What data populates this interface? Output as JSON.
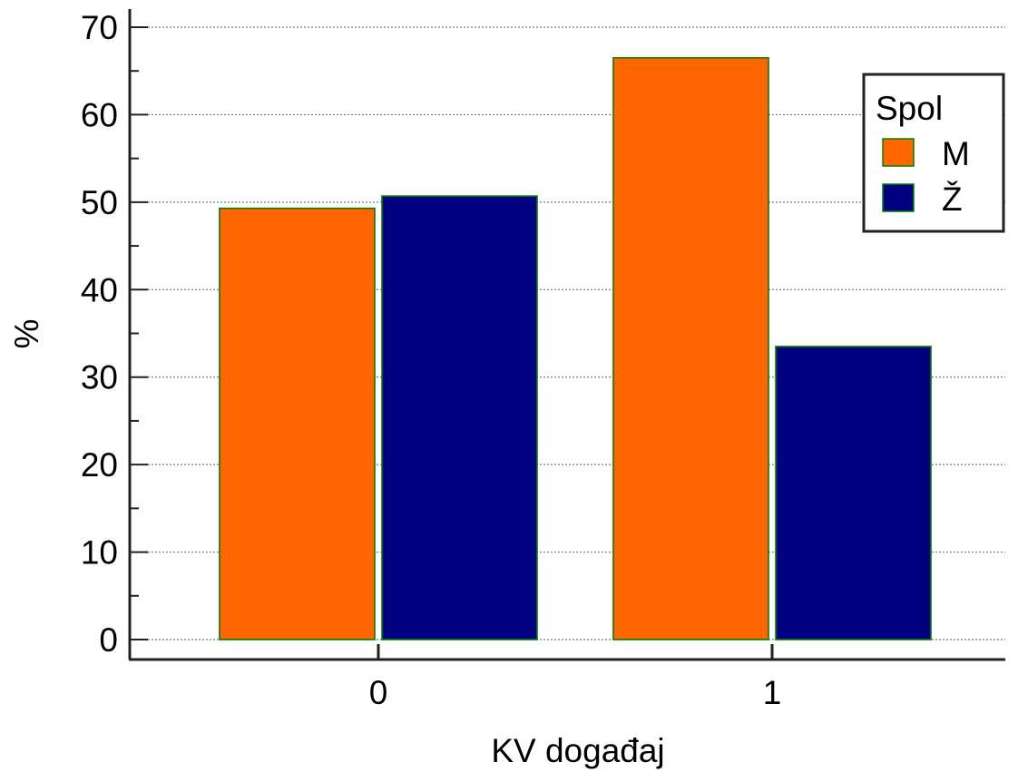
{
  "chart_data": {
    "type": "bar",
    "categories": [
      "0",
      "1"
    ],
    "series": [
      {
        "name": "M",
        "values": [
          49.3,
          66.5
        ],
        "color": "#ff6600"
      },
      {
        "name": "Ž",
        "values": [
          50.7,
          33.5
        ],
        "color": "#000080"
      }
    ],
    "xlabel": "KV događaj",
    "ylabel": "%",
    "ylim": [
      0,
      70
    ],
    "yticks": [
      0,
      10,
      20,
      30,
      40,
      50,
      60,
      70
    ],
    "grid": true,
    "bar_edge_color": "#008000",
    "legend": {
      "title": "Spol",
      "position": "top-right"
    }
  }
}
